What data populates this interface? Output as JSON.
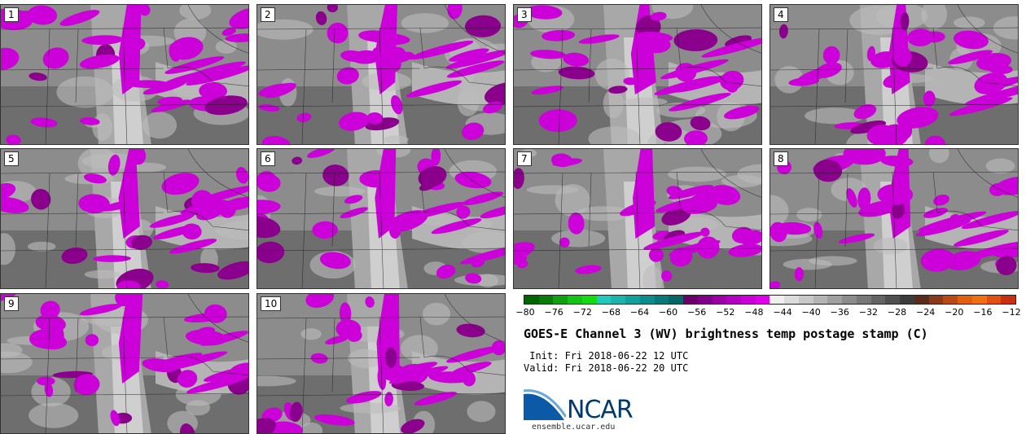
{
  "panels": [
    {
      "label": "1",
      "seed": 11
    },
    {
      "label": "2",
      "seed": 23
    },
    {
      "label": "3",
      "seed": 37
    },
    {
      "label": "4",
      "seed": 41
    },
    {
      "label": "5",
      "seed": 53
    },
    {
      "label": "6",
      "seed": 67
    },
    {
      "label": "7",
      "seed": 71
    },
    {
      "label": "8",
      "seed": 83
    },
    {
      "label": "9",
      "seed": 97
    },
    {
      "label": "10",
      "seed": 101
    }
  ],
  "colorbar": {
    "colors": [
      "#006400",
      "#0a7a0a",
      "#10a010",
      "#14c414",
      "#10dc10",
      "#20c8c0",
      "#18b4b0",
      "#10a0a0",
      "#0c8c8c",
      "#087878",
      "#066666",
      "#6a006a",
      "#80008a",
      "#9a00a6",
      "#b400c0",
      "#cc00d8",
      "#e000ea",
      "#f0f0f0",
      "#dcdcdc",
      "#c8c8c8",
      "#b4b4b4",
      "#a0a0a0",
      "#8c8c8c",
      "#787878",
      "#646464",
      "#505050",
      "#3c3c3c",
      "#5a2a1a",
      "#8a3a1a",
      "#b84a14",
      "#e0600e",
      "#f07010",
      "#e05010",
      "#c83010"
    ],
    "ticks": [
      "−80",
      "−76",
      "−72",
      "−68",
      "−64",
      "−60",
      "−56",
      "−52",
      "−48",
      "−44",
      "−40",
      "−36",
      "−32",
      "−28",
      "−24",
      "−20",
      "−16",
      "−12"
    ]
  },
  "title": "GOES-E Channel 3 (WV) brightness temp postage stamp (C)",
  "init": " Init: Fri 2018-06-22 12 UTC",
  "valid": "Valid: Fri 2018-06-22 20 UTC",
  "logo": {
    "text": "NCAR",
    "site": "ensemble.ucar.edu"
  }
}
